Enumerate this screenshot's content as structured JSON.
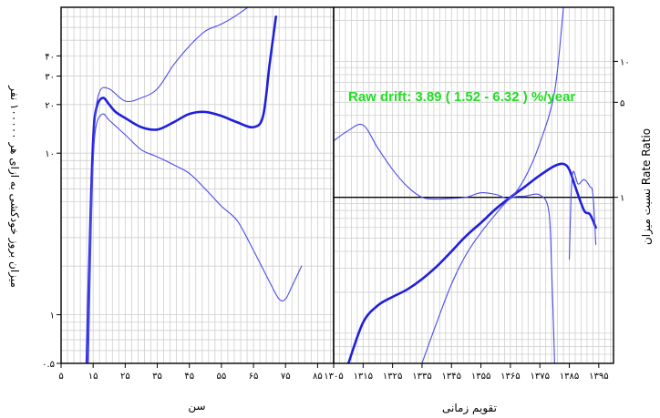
{
  "chart_data": [
    {
      "type": "line",
      "panel": "age",
      "xlabel": "سن",
      "ylabel": "میزان بروز خودکشی به ازای هر ۱۰۰۰۰۰ نفر",
      "x_ticks": [
        5,
        15,
        25,
        35,
        45,
        55,
        65,
        75,
        85
      ],
      "x_tick_labels": [
        "۵",
        "۱۵",
        "۲۵",
        "۳۵",
        "۴۵",
        "۵۵",
        "۶۵",
        "۷۵",
        "۸۵"
      ],
      "xlim": [
        5,
        90
      ],
      "y_scale": "log",
      "ylim": [
        0.5,
        80
      ],
      "y_ticks": [
        0.5,
        1,
        10,
        20,
        30,
        40
      ],
      "y_tick_labels": [
        "۰.۵",
        "۱",
        "۱۰",
        "۲۰",
        "۳۰",
        "۴۰"
      ],
      "series": [
        {
          "role": "estimate",
          "x": [
            13,
            14,
            15,
            16,
            18,
            20,
            22,
            25,
            30,
            35,
            40,
            45,
            50,
            55,
            60,
            65,
            68,
            70,
            72
          ],
          "y": [
            0.5,
            3,
            12,
            19,
            22,
            20,
            18,
            16.5,
            14.5,
            14,
            15.5,
            17.5,
            18,
            17,
            15.5,
            14.5,
            17,
            35,
            70
          ]
        },
        {
          "role": "upper",
          "x": [
            13.5,
            14.5,
            15.5,
            17,
            20,
            25,
            30,
            35,
            40,
            45,
            50,
            55,
            60,
            65
          ],
          "y": [
            0.5,
            4,
            15,
            24,
            25,
            21,
            22,
            25,
            35,
            46,
            57,
            63,
            72,
            85
          ]
        },
        {
          "role": "lower",
          "x": [
            13,
            14,
            15,
            16,
            18,
            20,
            25,
            30,
            35,
            40,
            45,
            50,
            55,
            60,
            65,
            70,
            73,
            75,
            77,
            80
          ],
          "y": [
            0.5,
            3,
            9,
            15,
            17.5,
            16,
            13,
            10.5,
            9.5,
            8.5,
            7.5,
            6,
            4.7,
            3.8,
            2.5,
            1.6,
            1.25,
            1.25,
            1.5,
            2
          ]
        }
      ]
    },
    {
      "type": "line",
      "panel": "calendar",
      "xlabel": "تقویم زمانی",
      "ylabel": "نسبت میزان Rate Ratio",
      "x_ticks": [
        1305,
        1315,
        1325,
        1335,
        1345,
        1355,
        1365,
        1375,
        1385,
        1395
      ],
      "x_tick_labels": [
        "۱۳۰۵",
        "۱۳۱۵",
        "۱۳۲۵",
        "۱۳۳۵",
        "۱۳۴۵",
        "۱۳۵۵",
        "۱۳۶۵",
        "۱۳۷۵",
        "۱۳۸۵",
        "۱۳۹۵"
      ],
      "xlim": [
        1305,
        1400
      ],
      "y_scale": "log",
      "ylim": [
        0.06,
        25
      ],
      "y_ticks": [
        1,
        5,
        10
      ],
      "y_tick_labels": [
        "۱",
        "۵",
        "۱۰"
      ],
      "reference_line": 1,
      "annotation": "Raw drift: 3.89 ( 1.52 - 6.32 ) %/year",
      "series": [
        {
          "role": "estimate",
          "x": [
            1310,
            1315,
            1320,
            1325,
            1330,
            1335,
            1340,
            1345,
            1350,
            1355,
            1360,
            1365,
            1370,
            1375,
            1380,
            1383,
            1385,
            1387,
            1390,
            1392,
            1394
          ],
          "y": [
            0.06,
            0.12,
            0.16,
            0.185,
            0.21,
            0.25,
            0.31,
            0.4,
            0.52,
            0.65,
            0.82,
            1.0,
            1.2,
            1.45,
            1.7,
            1.76,
            1.6,
            1.2,
            0.8,
            0.75,
            0.6
          ]
        },
        {
          "role": "upper",
          "x": [
            1305,
            1310,
            1315,
            1320,
            1325,
            1330,
            1335,
            1340,
            1345,
            1350,
            1355,
            1360,
            1365,
            1370,
            1375,
            1380,
            1383
          ],
          "y": [
            2.6,
            3.1,
            3.4,
            2.3,
            1.6,
            1.2,
            1.0,
            0.97,
            0.98,
            1.0,
            1.08,
            1.05,
            1.0,
            1.4,
            2.5,
            6.0,
            25
          ]
        },
        {
          "role": "lower",
          "x": [
            1335,
            1340,
            1345,
            1350,
            1355,
            1360,
            1365,
            1370,
            1375,
            1378,
            1379,
            1380
          ],
          "y": [
            0.06,
            0.12,
            0.23,
            0.38,
            0.55,
            0.75,
            0.98,
            1.02,
            1.04,
            0.8,
            0.3,
            0.06
          ]
        },
        {
          "role": "recent-ci",
          "x": [
            1385,
            1386,
            1388,
            1390,
            1392,
            1393,
            1394
          ],
          "y": [
            0.35,
            1.45,
            1.25,
            1.35,
            1.2,
            1.05,
            0.45
          ]
        }
      ]
    }
  ]
}
